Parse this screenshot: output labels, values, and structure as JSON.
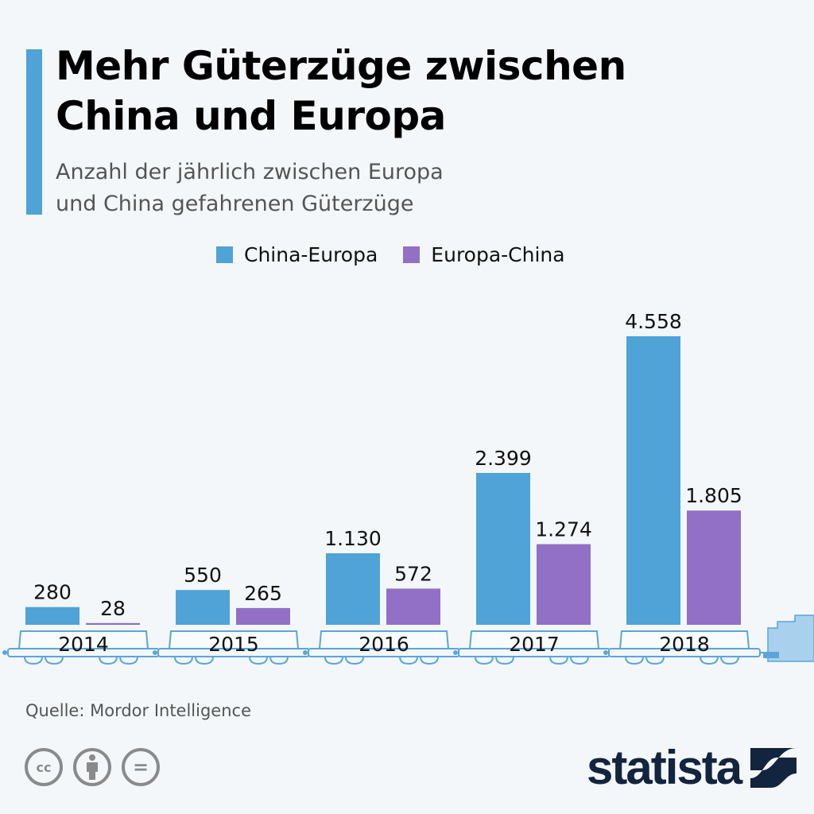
{
  "header": {
    "title_lines": [
      "Mehr Güterzüge zwischen",
      "China und Europa"
    ],
    "subtitle_lines": [
      "Anzahl der jährlich zwischen Europa",
      "und China gefahrenen Güterzüge"
    ]
  },
  "colors": {
    "accent": "#4fa3d7",
    "china_europa": "#4fa3d7",
    "europa_china": "#9170c5",
    "train_outline": "#5ba6d8",
    "locomotive": "#a9d0ec",
    "logo": "#13243f"
  },
  "chart_data": {
    "type": "bar",
    "title": "Mehr Güterzüge zwischen China und Europa",
    "subtitle": "Anzahl der jährlich zwischen Europa und China gefahrenen Güterzüge",
    "xlabel": "",
    "ylabel": "",
    "ylim": [
      0,
      4558
    ],
    "grid": false,
    "legend_position": "top-center",
    "categories": [
      "2014",
      "2015",
      "2016",
      "2017",
      "2018"
    ],
    "series": [
      {
        "name": "China-Europa",
        "values": [
          280,
          550,
          1130,
          2399,
          4558
        ],
        "labels": [
          "280",
          "550",
          "1.130",
          "2.399",
          "4.558"
        ]
      },
      {
        "name": "Europa-China",
        "values": [
          28,
          265,
          572,
          1274,
          1805
        ],
        "labels": [
          "28",
          "265",
          "572",
          "1.274",
          "1.805"
        ]
      }
    ]
  },
  "legend": {
    "items": [
      "China-Europa",
      "Europa-China"
    ]
  },
  "footer": {
    "source": "Quelle: Mordor Intelligence",
    "license_icons": [
      "cc-icon",
      "attribution-icon",
      "no-derivatives-icon"
    ],
    "license_glyphs": [
      "cc",
      "="
    ],
    "logo_text": "statista"
  }
}
